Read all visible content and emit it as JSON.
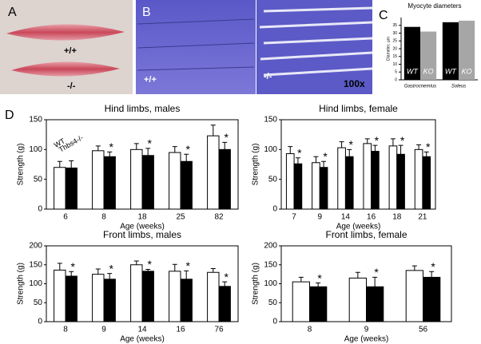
{
  "panels": {
    "A": {
      "label": "A",
      "annotations": [
        "+/+",
        "-/-"
      ]
    },
    "B": {
      "label": "B",
      "annotations": [
        "+/+",
        "-/-",
        "100x"
      ]
    },
    "C": {
      "label": "C"
    },
    "D": {
      "label": "D"
    }
  },
  "chart_data": [
    {
      "type": "bar",
      "title": "Myocyte diameters",
      "y_label": "Diameter, µm",
      "categories": [
        "Gastrocnemius",
        "Soleus"
      ],
      "series": [
        {
          "name": "WT",
          "color": "#000000",
          "values": [
            34,
            37
          ]
        },
        {
          "name": "KO",
          "color": "#a6a6a6",
          "values": [
            31,
            38
          ]
        }
      ],
      "ylim": [
        0,
        40
      ],
      "yticks": [
        0,
        5,
        10,
        15,
        20,
        25,
        30,
        35
      ],
      "legend_position": "inside-bars"
    },
    {
      "type": "bar",
      "title": "Hind limbs, males",
      "x_label": "Age (weeks)",
      "y_label": "Strength (g)",
      "categories": [
        "6",
        "8",
        "18",
        "25",
        "82"
      ],
      "series": [
        {
          "name": "WT",
          "color": "#ffffff",
          "values": [
            70,
            98,
            100,
            95,
            123
          ],
          "errors": [
            10,
            8,
            10,
            10,
            18
          ]
        },
        {
          "name": "Thbs4-/-",
          "color": "#000000",
          "values": [
            69,
            88,
            90,
            80,
            100
          ],
          "errors": [
            12,
            8,
            12,
            12,
            12
          ],
          "significance": [
            null,
            "*",
            "*",
            "*",
            "*"
          ]
        }
      ],
      "ylim": [
        0,
        150
      ],
      "yticks": [
        0,
        50,
        100,
        150
      ],
      "legend_position": "upper-left"
    },
    {
      "type": "bar",
      "title": "Hind limbs, female",
      "x_label": "Age (weeks)",
      "y_label": "Strength (g)",
      "categories": [
        "7",
        "9",
        "14",
        "16",
        "18",
        "21"
      ],
      "series": [
        {
          "name": "WT",
          "color": "#ffffff",
          "values": [
            93,
            78,
            103,
            110,
            106,
            100
          ],
          "errors": [
            12,
            10,
            10,
            8,
            12,
            8
          ]
        },
        {
          "name": "Thbs4-/-",
          "color": "#000000",
          "values": [
            76,
            70,
            88,
            97,
            92,
            88
          ],
          "errors": [
            10,
            10,
            12,
            10,
            15,
            8
          ],
          "significance": [
            "*",
            "*",
            "*",
            "*",
            "*",
            "*"
          ]
        }
      ],
      "ylim": [
        0,
        150
      ],
      "yticks": [
        0,
        50,
        100,
        150
      ]
    },
    {
      "type": "bar",
      "title": "Front limbs, males",
      "x_label": "Age (weeks)",
      "y_label": "Strength (g)",
      "categories": [
        "8",
        "9",
        "14",
        "16",
        "76"
      ],
      "series": [
        {
          "name": "WT",
          "color": "#ffffff",
          "values": [
            136,
            125,
            150,
            133,
            130
          ],
          "errors": [
            18,
            14,
            10,
            18,
            10
          ]
        },
        {
          "name": "Thbs4-/-",
          "color": "#000000",
          "values": [
            120,
            112,
            133,
            112,
            93
          ],
          "errors": [
            12,
            15,
            5,
            22,
            12
          ],
          "significance": [
            "*",
            "*",
            "*",
            "*",
            "*"
          ]
        }
      ],
      "ylim": [
        0,
        200
      ],
      "yticks": [
        0,
        50,
        100,
        150,
        200
      ]
    },
    {
      "type": "bar",
      "title": "Front limbs, female",
      "x_label": "Age (weeks)",
      "y_label": "Strength (g)",
      "categories": [
        "8",
        "9",
        "56"
      ],
      "series": [
        {
          "name": "WT",
          "color": "#ffffff",
          "values": [
            105,
            115,
            135
          ],
          "errors": [
            12,
            15,
            12
          ]
        },
        {
          "name": "Thbs4-/-",
          "color": "#000000",
          "values": [
            92,
            92,
            117
          ],
          "errors": [
            10,
            25,
            15
          ],
          "significance": [
            "*",
            "*",
            "*"
          ]
        }
      ],
      "ylim": [
        0,
        200
      ],
      "yticks": [
        0,
        50,
        100,
        150,
        200
      ]
    }
  ]
}
